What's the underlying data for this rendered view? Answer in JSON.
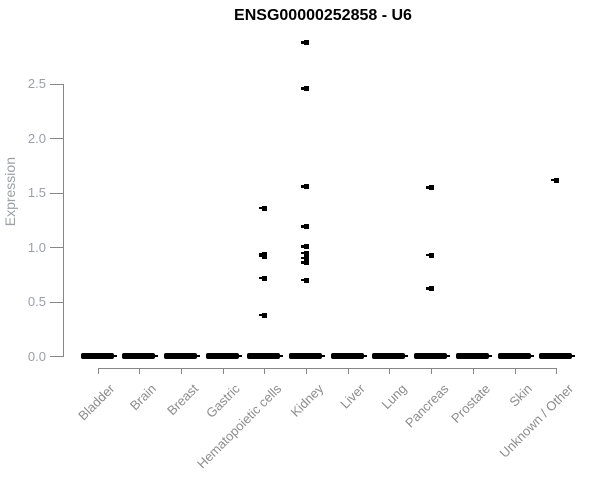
{
  "chart_data": {
    "type": "scatter",
    "title": "ENSG00000252858 - U6",
    "ylabel": "Expression",
    "xlabel": "",
    "ylim": [
      0,
      2.9
    ],
    "grid": false,
    "legend": null,
    "ytick_labels": [
      "0.0",
      "0.5",
      "1.0",
      "1.5",
      "2.0",
      "2.5"
    ],
    "categories": [
      "Bladder",
      "Brain",
      "Breast",
      "Gastric",
      "Hematopoietic cells",
      "Kidney",
      "Liver",
      "Lung",
      "Pancreas",
      "Prostate",
      "Skin",
      "Unknown / Other"
    ],
    "series": [
      {
        "name": "Expression",
        "marker": "black-square",
        "points_by_category": {
          "Bladder": [],
          "Brain": [],
          "Breast": [],
          "Gastric": [],
          "Hematopoietic cells": [
            1.36,
            0.94,
            0.92,
            0.72,
            0.38
          ],
          "Kidney": [
            2.88,
            2.46,
            1.56,
            1.19,
            1.01,
            0.95,
            0.9,
            0.86,
            0.7
          ],
          "Liver": [],
          "Lung": [],
          "Pancreas": [
            1.55,
            0.93,
            0.62
          ],
          "Prostate": [],
          "Skin": [],
          "Unknown / Other": [
            1.62
          ]
        }
      }
    ],
    "zero_dash_in_all_categories": true,
    "zero_dash_value": 0.0
  },
  "colors": {
    "point": "#000000",
    "axis_line": "#878787",
    "tick_label": "#9b9fa6",
    "category_label": "#8c8c8c",
    "title": "#000000",
    "background": "#ffffff"
  }
}
